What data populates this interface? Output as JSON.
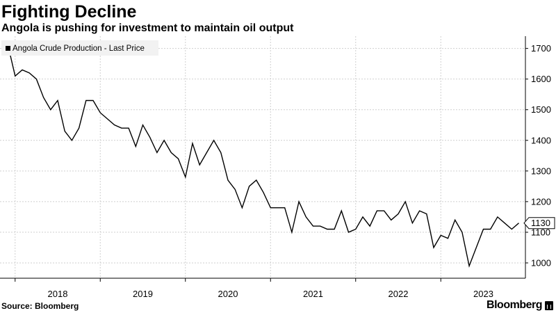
{
  "header": {
    "title": "Fighting Decline",
    "subtitle": "Angola is pushing for investment to maintain oil output"
  },
  "footer": {
    "source": "Source: Bloomberg",
    "brand": "Bloomberg"
  },
  "chart_data": {
    "type": "line",
    "title": "Fighting Decline",
    "subtitle": "Angola is pushing for investment to maintain oil output",
    "xlabel": "",
    "ylabel": "",
    "ylim": [
      950,
      1740
    ],
    "y_ticks": [
      1000,
      1100,
      1200,
      1300,
      1400,
      1500,
      1600,
      1700
    ],
    "x_ticks": [
      "2018",
      "2019",
      "2020",
      "2021",
      "2022",
      "2023"
    ],
    "y_axis_position": "right",
    "grid": true,
    "legend": {
      "placement": "top-left",
      "entries": [
        "Angola Crude Production - Last Price"
      ]
    },
    "last_value_label": "1130",
    "colors": {
      "line": "#000000",
      "grid": "#cfcfcf",
      "legend_bg": "#f2f2f2",
      "last_label_bg": "#ffffff"
    },
    "series": [
      {
        "name": "Angola Crude Production - Last Price",
        "x": [
          "2017-06",
          "2017-07",
          "2017-08",
          "2017-09",
          "2017-10",
          "2017-11",
          "2017-12",
          "2018-01",
          "2018-02",
          "2018-03",
          "2018-04",
          "2018-05",
          "2018-06",
          "2018-07",
          "2018-08",
          "2018-09",
          "2018-10",
          "2018-11",
          "2018-12",
          "2019-01",
          "2019-02",
          "2019-03",
          "2019-04",
          "2019-05",
          "2019-06",
          "2019-07",
          "2019-08",
          "2019-09",
          "2019-10",
          "2019-11",
          "2019-12",
          "2020-01",
          "2020-02",
          "2020-03",
          "2020-04",
          "2020-05",
          "2020-06",
          "2020-07",
          "2020-08",
          "2020-09",
          "2020-10",
          "2020-11",
          "2020-12",
          "2021-01",
          "2021-02",
          "2021-03",
          "2021-04",
          "2021-05",
          "2021-06",
          "2021-07",
          "2021-08",
          "2021-09",
          "2021-10",
          "2021-11",
          "2021-12",
          "2022-01",
          "2022-02",
          "2022-03",
          "2022-04",
          "2022-05",
          "2022-06",
          "2022-07",
          "2022-08",
          "2022-09",
          "2022-10",
          "2022-11",
          "2022-12",
          "2023-01",
          "2023-02",
          "2023-03",
          "2023-04",
          "2023-05",
          "2023-06"
        ],
        "values": [
          1710,
          1610,
          1630,
          1620,
          1600,
          1540,
          1500,
          1530,
          1430,
          1400,
          1440,
          1530,
          1530,
          1490,
          1470,
          1450,
          1440,
          1440,
          1380,
          1450,
          1410,
          1360,
          1400,
          1360,
          1340,
          1280,
          1390,
          1320,
          1360,
          1400,
          1360,
          1270,
          1240,
          1180,
          1250,
          1270,
          1230,
          1180,
          1180,
          1180,
          1100,
          1200,
          1150,
          1120,
          1120,
          1110,
          1110,
          1170,
          1100,
          1110,
          1150,
          1120,
          1170,
          1170,
          1140,
          1160,
          1200,
          1130,
          1170,
          1160,
          1050,
          1090,
          1080,
          1140,
          1100,
          990,
          1050,
          1110,
          1110,
          1150,
          1130,
          1110,
          1130
        ]
      }
    ]
  }
}
